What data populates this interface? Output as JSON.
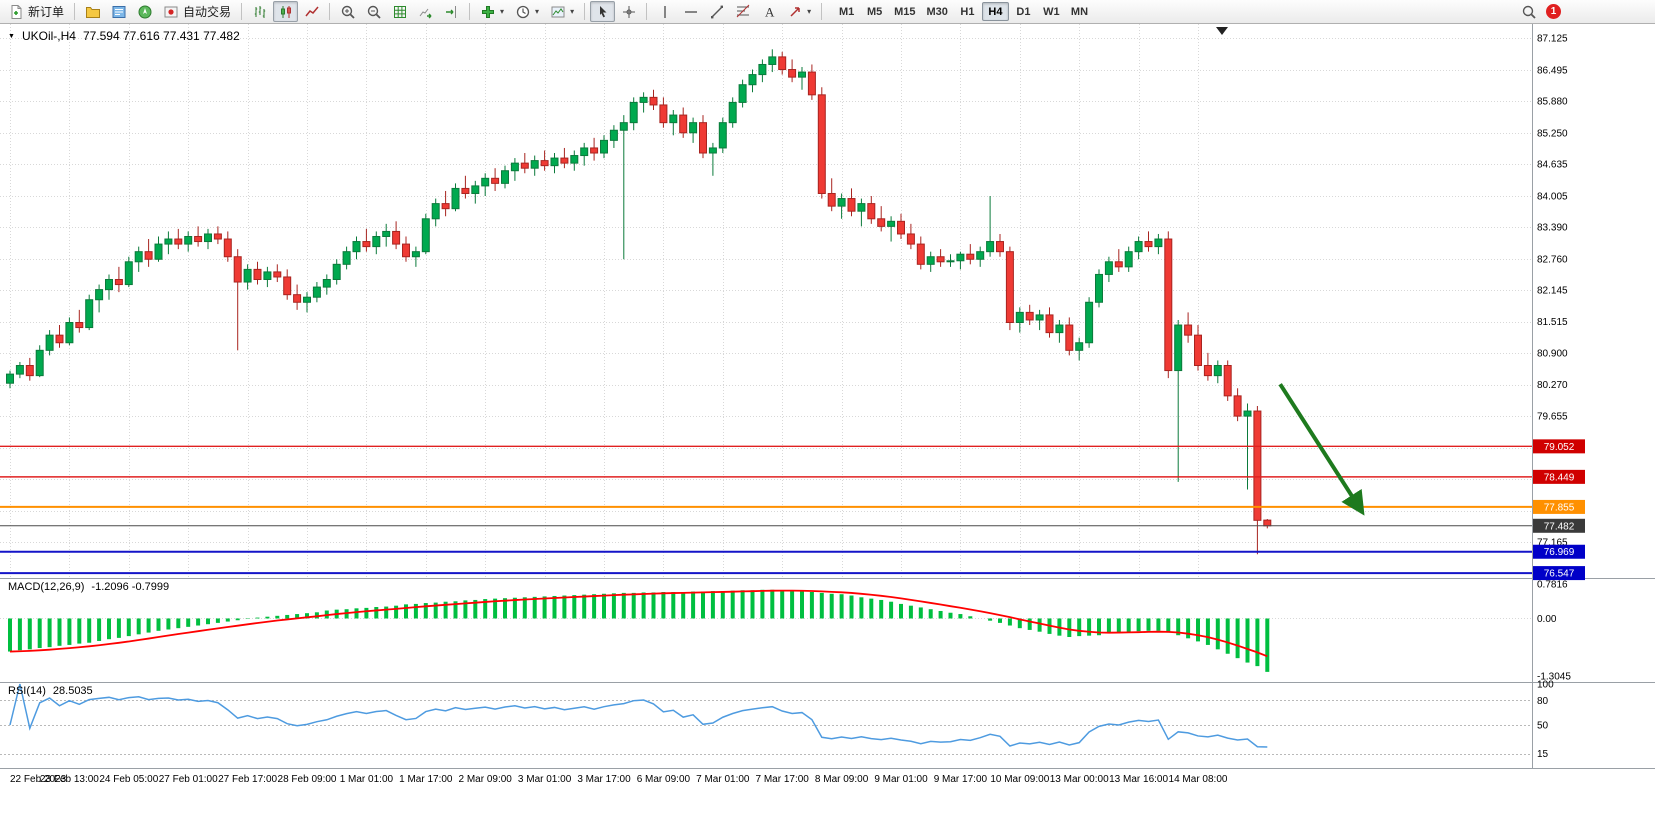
{
  "toolbar": {
    "new_order_label": "新订单",
    "auto_trading_label": "自动交易",
    "timeframes": [
      "M1",
      "M5",
      "M15",
      "M30",
      "H1",
      "H4",
      "D1",
      "W1",
      "MN"
    ],
    "active_timeframe": "H4",
    "notification_count": "1",
    "caret": "▾",
    "icon_names": [
      "new-order-icon",
      "profiles-icon",
      "market-watch-icon",
      "navigator-icon",
      "auto-trading-icon",
      "bar-chart-icon",
      "candlestick-chart-icon",
      "line-chart-icon",
      "zoom-in-icon",
      "zoom-out-icon",
      "grid-icon",
      "auto-scroll-icon",
      "chart-shift-icon",
      "indicators-add-icon",
      "periods-clock-icon",
      "template-icon",
      "cursor-icon",
      "crosshair-icon",
      "vertical-line-icon",
      "horizontal-line-icon",
      "trendline-icon",
      "fibonacci-icon",
      "text-icon",
      "arrows-icon",
      "search-icon"
    ]
  },
  "chart": {
    "expand_marker": "▼",
    "symbol_label": "UKOil-,H4",
    "ohlc_label": "77.594 77.616 77.431 77.482",
    "range": {
      "max": 87.4,
      "min": 76.45
    },
    "price_axis": {
      "labels": [
        "87.125",
        "86.495",
        "85.880",
        "85.250",
        "84.635",
        "84.005",
        "83.390",
        "82.760",
        "82.145",
        "81.515",
        "80.900",
        "80.270",
        "79.655",
        "77.165"
      ],
      "gridlines": [
        87.125,
        86.495,
        85.88,
        85.25,
        84.635,
        84.005,
        83.39,
        82.76,
        82.145,
        81.515,
        80.9,
        80.27,
        79.655,
        79.025,
        78.41,
        77.78,
        77.165,
        76.55
      ]
    },
    "time_axis": {
      "step": 6,
      "labels": [
        "22 Feb 2023",
        "23 Feb 13:00",
        "24 Feb 05:00",
        "27 Feb 01:00",
        "27 Feb 17:00",
        "28 Feb 09:00",
        "1 Mar 01:00",
        "1 Mar 17:00",
        "2 Mar 09:00",
        "3 Mar 01:00",
        "3 Mar 17:00",
        "6 Mar 09:00",
        "7 Mar 01:00",
        "7 Mar 17:00",
        "8 Mar 09:00",
        "9 Mar 01:00",
        "9 Mar 17:00",
        "10 Mar 09:00",
        "13 Mar 00:00",
        "13 Mar 16:00",
        "14 Mar 08:00"
      ]
    },
    "levels": [
      {
        "price": 79.052,
        "label": "79.052",
        "line_color": "#e02020",
        "badge_color": "#d00000",
        "width": 1.4
      },
      {
        "price": 78.449,
        "label": "78.449",
        "line_color": "#e02020",
        "badge_color": "#d00000",
        "width": 1.4
      },
      {
        "price": 77.855,
        "label": "77.855",
        "line_color": "#ff9000",
        "badge_color": "#ff9000",
        "width": 2
      },
      {
        "price": 76.969,
        "label": "76.969",
        "line_color": "#1414c8",
        "badge_color": "#0000c8",
        "width": 2
      },
      {
        "price": 76.547,
        "label": "76.547",
        "line_color": "#1414c8",
        "badge_color": "#0000c8",
        "width": 2
      }
    ],
    "current_price": {
      "price": 77.482,
      "label": "77.482",
      "line_color": "#4a4a4a",
      "badge_color": "#3a3a3a"
    }
  },
  "indicators": {
    "macd": {
      "title": "MACD(12,26,9)",
      "values": "-1.2096 -0.7999",
      "axis_labels": [
        "0.7816",
        "0.00",
        "-1.3045"
      ],
      "range": [
        -1.3045,
        0.7816
      ],
      "signal_period": 9
    },
    "rsi": {
      "title": "RSI(14)",
      "value": "28.5035",
      "axis_labels": [
        "100",
        "80",
        "50",
        "15"
      ],
      "levels": [
        80,
        50,
        15
      ],
      "period": 14
    }
  },
  "chart_data": {
    "type": "candlestick",
    "symbol": "UKOil-",
    "timeframe": "H4",
    "candles": [
      [
        80.3,
        80.55,
        80.2,
        80.48
      ],
      [
        80.48,
        80.72,
        80.4,
        80.65
      ],
      [
        80.65,
        80.8,
        80.35,
        80.45
      ],
      [
        80.45,
        81.05,
        80.42,
        80.95
      ],
      [
        80.95,
        81.35,
        80.85,
        81.25
      ],
      [
        81.25,
        81.45,
        81.0,
        81.1
      ],
      [
        81.1,
        81.6,
        81.05,
        81.5
      ],
      [
        81.5,
        81.75,
        81.3,
        81.4
      ],
      [
        81.4,
        82.05,
        81.35,
        81.95
      ],
      [
        81.95,
        82.25,
        81.7,
        82.15
      ],
      [
        82.15,
        82.45,
        81.95,
        82.35
      ],
      [
        82.35,
        82.6,
        82.1,
        82.25
      ],
      [
        82.25,
        82.8,
        82.2,
        82.7
      ],
      [
        82.7,
        83.0,
        82.5,
        82.9
      ],
      [
        82.9,
        83.15,
        82.6,
        82.75
      ],
      [
        82.75,
        83.2,
        82.7,
        83.05
      ],
      [
        83.05,
        83.3,
        82.85,
        83.15
      ],
      [
        83.15,
        83.35,
        82.95,
        83.05
      ],
      [
        83.05,
        83.3,
        82.9,
        83.2
      ],
      [
        83.2,
        83.4,
        83.0,
        83.1
      ],
      [
        83.1,
        83.35,
        82.95,
        83.25
      ],
      [
        83.25,
        83.4,
        83.05,
        83.15
      ],
      [
        83.15,
        83.3,
        82.7,
        82.8
      ],
      [
        82.8,
        82.95,
        80.95,
        82.3
      ],
      [
        82.3,
        82.65,
        82.15,
        82.55
      ],
      [
        82.55,
        82.7,
        82.25,
        82.35
      ],
      [
        82.35,
        82.6,
        82.2,
        82.5
      ],
      [
        82.5,
        82.65,
        82.3,
        82.4
      ],
      [
        82.4,
        82.55,
        81.95,
        82.05
      ],
      [
        82.05,
        82.25,
        81.75,
        81.9
      ],
      [
        81.9,
        82.1,
        81.7,
        82.0
      ],
      [
        82.0,
        82.3,
        81.9,
        82.2
      ],
      [
        82.2,
        82.45,
        82.05,
        82.35
      ],
      [
        82.35,
        82.75,
        82.25,
        82.65
      ],
      [
        82.65,
        83.0,
        82.55,
        82.9
      ],
      [
        82.9,
        83.2,
        82.75,
        83.1
      ],
      [
        83.1,
        83.35,
        82.9,
        83.0
      ],
      [
        83.0,
        83.3,
        82.85,
        83.2
      ],
      [
        83.2,
        83.45,
        83.0,
        83.3
      ],
      [
        83.3,
        83.5,
        82.95,
        83.05
      ],
      [
        83.05,
        83.2,
        82.7,
        82.8
      ],
      [
        82.8,
        83.0,
        82.6,
        82.9
      ],
      [
        82.9,
        83.65,
        82.85,
        83.55
      ],
      [
        83.55,
        83.95,
        83.4,
        83.85
      ],
      [
        83.85,
        84.1,
        83.6,
        83.75
      ],
      [
        83.75,
        84.25,
        83.7,
        84.15
      ],
      [
        84.15,
        84.4,
        83.95,
        84.05
      ],
      [
        84.05,
        84.3,
        83.85,
        84.2
      ],
      [
        84.2,
        84.45,
        84.0,
        84.35
      ],
      [
        84.35,
        84.55,
        84.1,
        84.25
      ],
      [
        84.25,
        84.6,
        84.15,
        84.5
      ],
      [
        84.5,
        84.75,
        84.3,
        84.65
      ],
      [
        84.65,
        84.85,
        84.45,
        84.55
      ],
      [
        84.55,
        84.8,
        84.4,
        84.7
      ],
      [
        84.7,
        84.9,
        84.5,
        84.6
      ],
      [
        84.6,
        84.85,
        84.45,
        84.75
      ],
      [
        84.75,
        84.95,
        84.55,
        84.65
      ],
      [
        84.65,
        84.9,
        84.5,
        84.8
      ],
      [
        84.8,
        85.05,
        84.6,
        84.95
      ],
      [
        84.95,
        85.15,
        84.7,
        84.85
      ],
      [
        84.85,
        85.2,
        84.75,
        85.1
      ],
      [
        85.1,
        85.4,
        84.95,
        85.3
      ],
      [
        85.3,
        85.6,
        82.75,
        85.45
      ],
      [
        85.45,
        85.95,
        85.3,
        85.85
      ],
      [
        85.85,
        86.05,
        85.65,
        85.95
      ],
      [
        85.95,
        86.1,
        85.7,
        85.8
      ],
      [
        85.8,
        85.95,
        85.35,
        85.45
      ],
      [
        85.45,
        85.7,
        85.2,
        85.6
      ],
      [
        85.6,
        85.75,
        85.15,
        85.25
      ],
      [
        85.25,
        85.55,
        85.05,
        85.45
      ],
      [
        85.45,
        85.6,
        84.75,
        84.85
      ],
      [
        84.85,
        85.05,
        84.4,
        84.95
      ],
      [
        84.95,
        85.55,
        84.85,
        85.45
      ],
      [
        85.45,
        85.95,
        85.35,
        85.85
      ],
      [
        85.85,
        86.3,
        85.75,
        86.2
      ],
      [
        86.2,
        86.5,
        86.05,
        86.4
      ],
      [
        86.4,
        86.7,
        86.25,
        86.6
      ],
      [
        86.6,
        86.9,
        86.45,
        86.75
      ],
      [
        86.75,
        86.85,
        86.4,
        86.5
      ],
      [
        86.5,
        86.7,
        86.25,
        86.35
      ],
      [
        86.35,
        86.55,
        86.1,
        86.45
      ],
      [
        86.45,
        86.6,
        85.9,
        86.0
      ],
      [
        86.0,
        86.15,
        83.95,
        84.05
      ],
      [
        84.05,
        84.35,
        83.7,
        83.8
      ],
      [
        83.8,
        84.05,
        83.55,
        83.95
      ],
      [
        83.95,
        84.15,
        83.6,
        83.7
      ],
      [
        83.7,
        83.95,
        83.4,
        83.85
      ],
      [
        83.85,
        84.0,
        83.45,
        83.55
      ],
      [
        83.55,
        83.8,
        83.3,
        83.4
      ],
      [
        83.4,
        83.6,
        83.1,
        83.5
      ],
      [
        83.5,
        83.65,
        83.15,
        83.25
      ],
      [
        83.25,
        83.45,
        82.95,
        83.05
      ],
      [
        83.05,
        83.2,
        82.55,
        82.65
      ],
      [
        82.65,
        82.9,
        82.5,
        82.8
      ],
      [
        82.8,
        82.95,
        82.6,
        82.7
      ],
      [
        82.7,
        82.85,
        82.6,
        82.72
      ],
      [
        82.72,
        82.9,
        82.55,
        82.85
      ],
      [
        82.85,
        83.05,
        82.65,
        82.75
      ],
      [
        82.75,
        83.0,
        82.6,
        82.9
      ],
      [
        82.9,
        84.0,
        82.8,
        83.1
      ],
      [
        83.1,
        83.25,
        82.8,
        82.9
      ],
      [
        82.9,
        83.0,
        81.35,
        81.5
      ],
      [
        81.5,
        81.8,
        81.3,
        81.7
      ],
      [
        81.7,
        81.85,
        81.45,
        81.55
      ],
      [
        81.55,
        81.75,
        81.35,
        81.65
      ],
      [
        81.65,
        81.8,
        81.2,
        81.3
      ],
      [
        81.3,
        81.55,
        81.1,
        81.45
      ],
      [
        81.45,
        81.6,
        80.85,
        80.95
      ],
      [
        80.95,
        81.2,
        80.75,
        81.1
      ],
      [
        81.1,
        82.0,
        81.0,
        81.9
      ],
      [
        81.9,
        82.55,
        81.8,
        82.45
      ],
      [
        82.45,
        82.8,
        82.3,
        82.7
      ],
      [
        82.7,
        82.95,
        82.5,
        82.6
      ],
      [
        82.6,
        83.0,
        82.5,
        82.9
      ],
      [
        82.9,
        83.2,
        82.75,
        83.1
      ],
      [
        83.1,
        83.3,
        82.9,
        83.0
      ],
      [
        83.0,
        83.25,
        82.85,
        83.15
      ],
      [
        83.15,
        83.3,
        80.4,
        80.55
      ],
      [
        80.55,
        81.55,
        78.35,
        81.45
      ],
      [
        81.45,
        81.7,
        81.1,
        81.25
      ],
      [
        81.25,
        81.45,
        80.55,
        80.65
      ],
      [
        80.65,
        80.9,
        80.35,
        80.45
      ],
      [
        80.45,
        80.75,
        80.3,
        80.65
      ],
      [
        80.65,
        80.75,
        79.95,
        80.05
      ],
      [
        80.05,
        80.2,
        79.55,
        79.65
      ],
      [
        79.65,
        79.9,
        78.2,
        79.75
      ],
      [
        79.75,
        79.85,
        76.92,
        77.59
      ],
      [
        77.594,
        77.616,
        77.431,
        77.482
      ]
    ],
    "macd_histogram": [
      -0.75,
      -0.72,
      -0.7,
      -0.67,
      -0.65,
      -0.62,
      -0.6,
      -0.57,
      -0.55,
      -0.51,
      -0.47,
      -0.44,
      -0.4,
      -0.36,
      -0.32,
      -0.28,
      -0.25,
      -0.22,
      -0.19,
      -0.16,
      -0.13,
      -0.1,
      -0.07,
      -0.04,
      -0.01,
      0.02,
      0.04,
      0.06,
      0.08,
      0.1,
      0.12,
      0.14,
      0.18,
      0.2,
      0.21,
      0.23,
      0.24,
      0.26,
      0.27,
      0.29,
      0.32,
      0.33,
      0.35,
      0.36,
      0.38,
      0.39,
      0.41,
      0.42,
      0.44,
      0.45,
      0.46,
      0.47,
      0.48,
      0.49,
      0.5,
      0.51,
      0.52,
      0.53,
      0.54,
      0.55,
      0.56,
      0.57,
      0.58,
      0.58,
      0.59,
      0.59,
      0.6,
      0.6,
      0.6,
      0.61,
      0.61,
      0.62,
      0.62,
      0.63,
      0.64,
      0.64,
      0.65,
      0.65,
      0.64,
      0.63,
      0.62,
      0.6,
      0.58,
      0.56,
      0.55,
      0.52,
      0.48,
      0.45,
      0.42,
      0.38,
      0.33,
      0.29,
      0.25,
      0.21,
      0.17,
      0.13,
      0.1,
      0.05,
      0,
      -0.05,
      -0.1,
      -0.16,
      -0.22,
      -0.26,
      -0.3,
      -0.35,
      -0.39,
      -0.42,
      -0.4,
      -0.39,
      -0.38,
      -0.34,
      -0.31,
      -0.3,
      -0.29,
      -0.28,
      -0.28,
      -0.32,
      -0.38,
      -0.45,
      -0.52,
      -0.6,
      -0.7,
      -0.8,
      -0.9,
      -1.0,
      -1.08,
      -1.21
    ]
  },
  "annotation": {
    "color": "#1e7a1e",
    "arrow": {
      "from": {
        "index": 128.3,
        "price": 80.28
      },
      "to": {
        "index": 136.6,
        "price": 77.75
      }
    }
  },
  "colors": {
    "up": "#00a94f",
    "up_border": "#0b7a3b",
    "down": "#ef3a34",
    "down_border": "#a82420",
    "grid": "#d8d8d8",
    "macd_bar": "#00bf40",
    "macd_signal": "#ff0000",
    "rsi_line": "#4e9be0",
    "pane_border": "#9aa0a6",
    "background": "#ffffff"
  }
}
